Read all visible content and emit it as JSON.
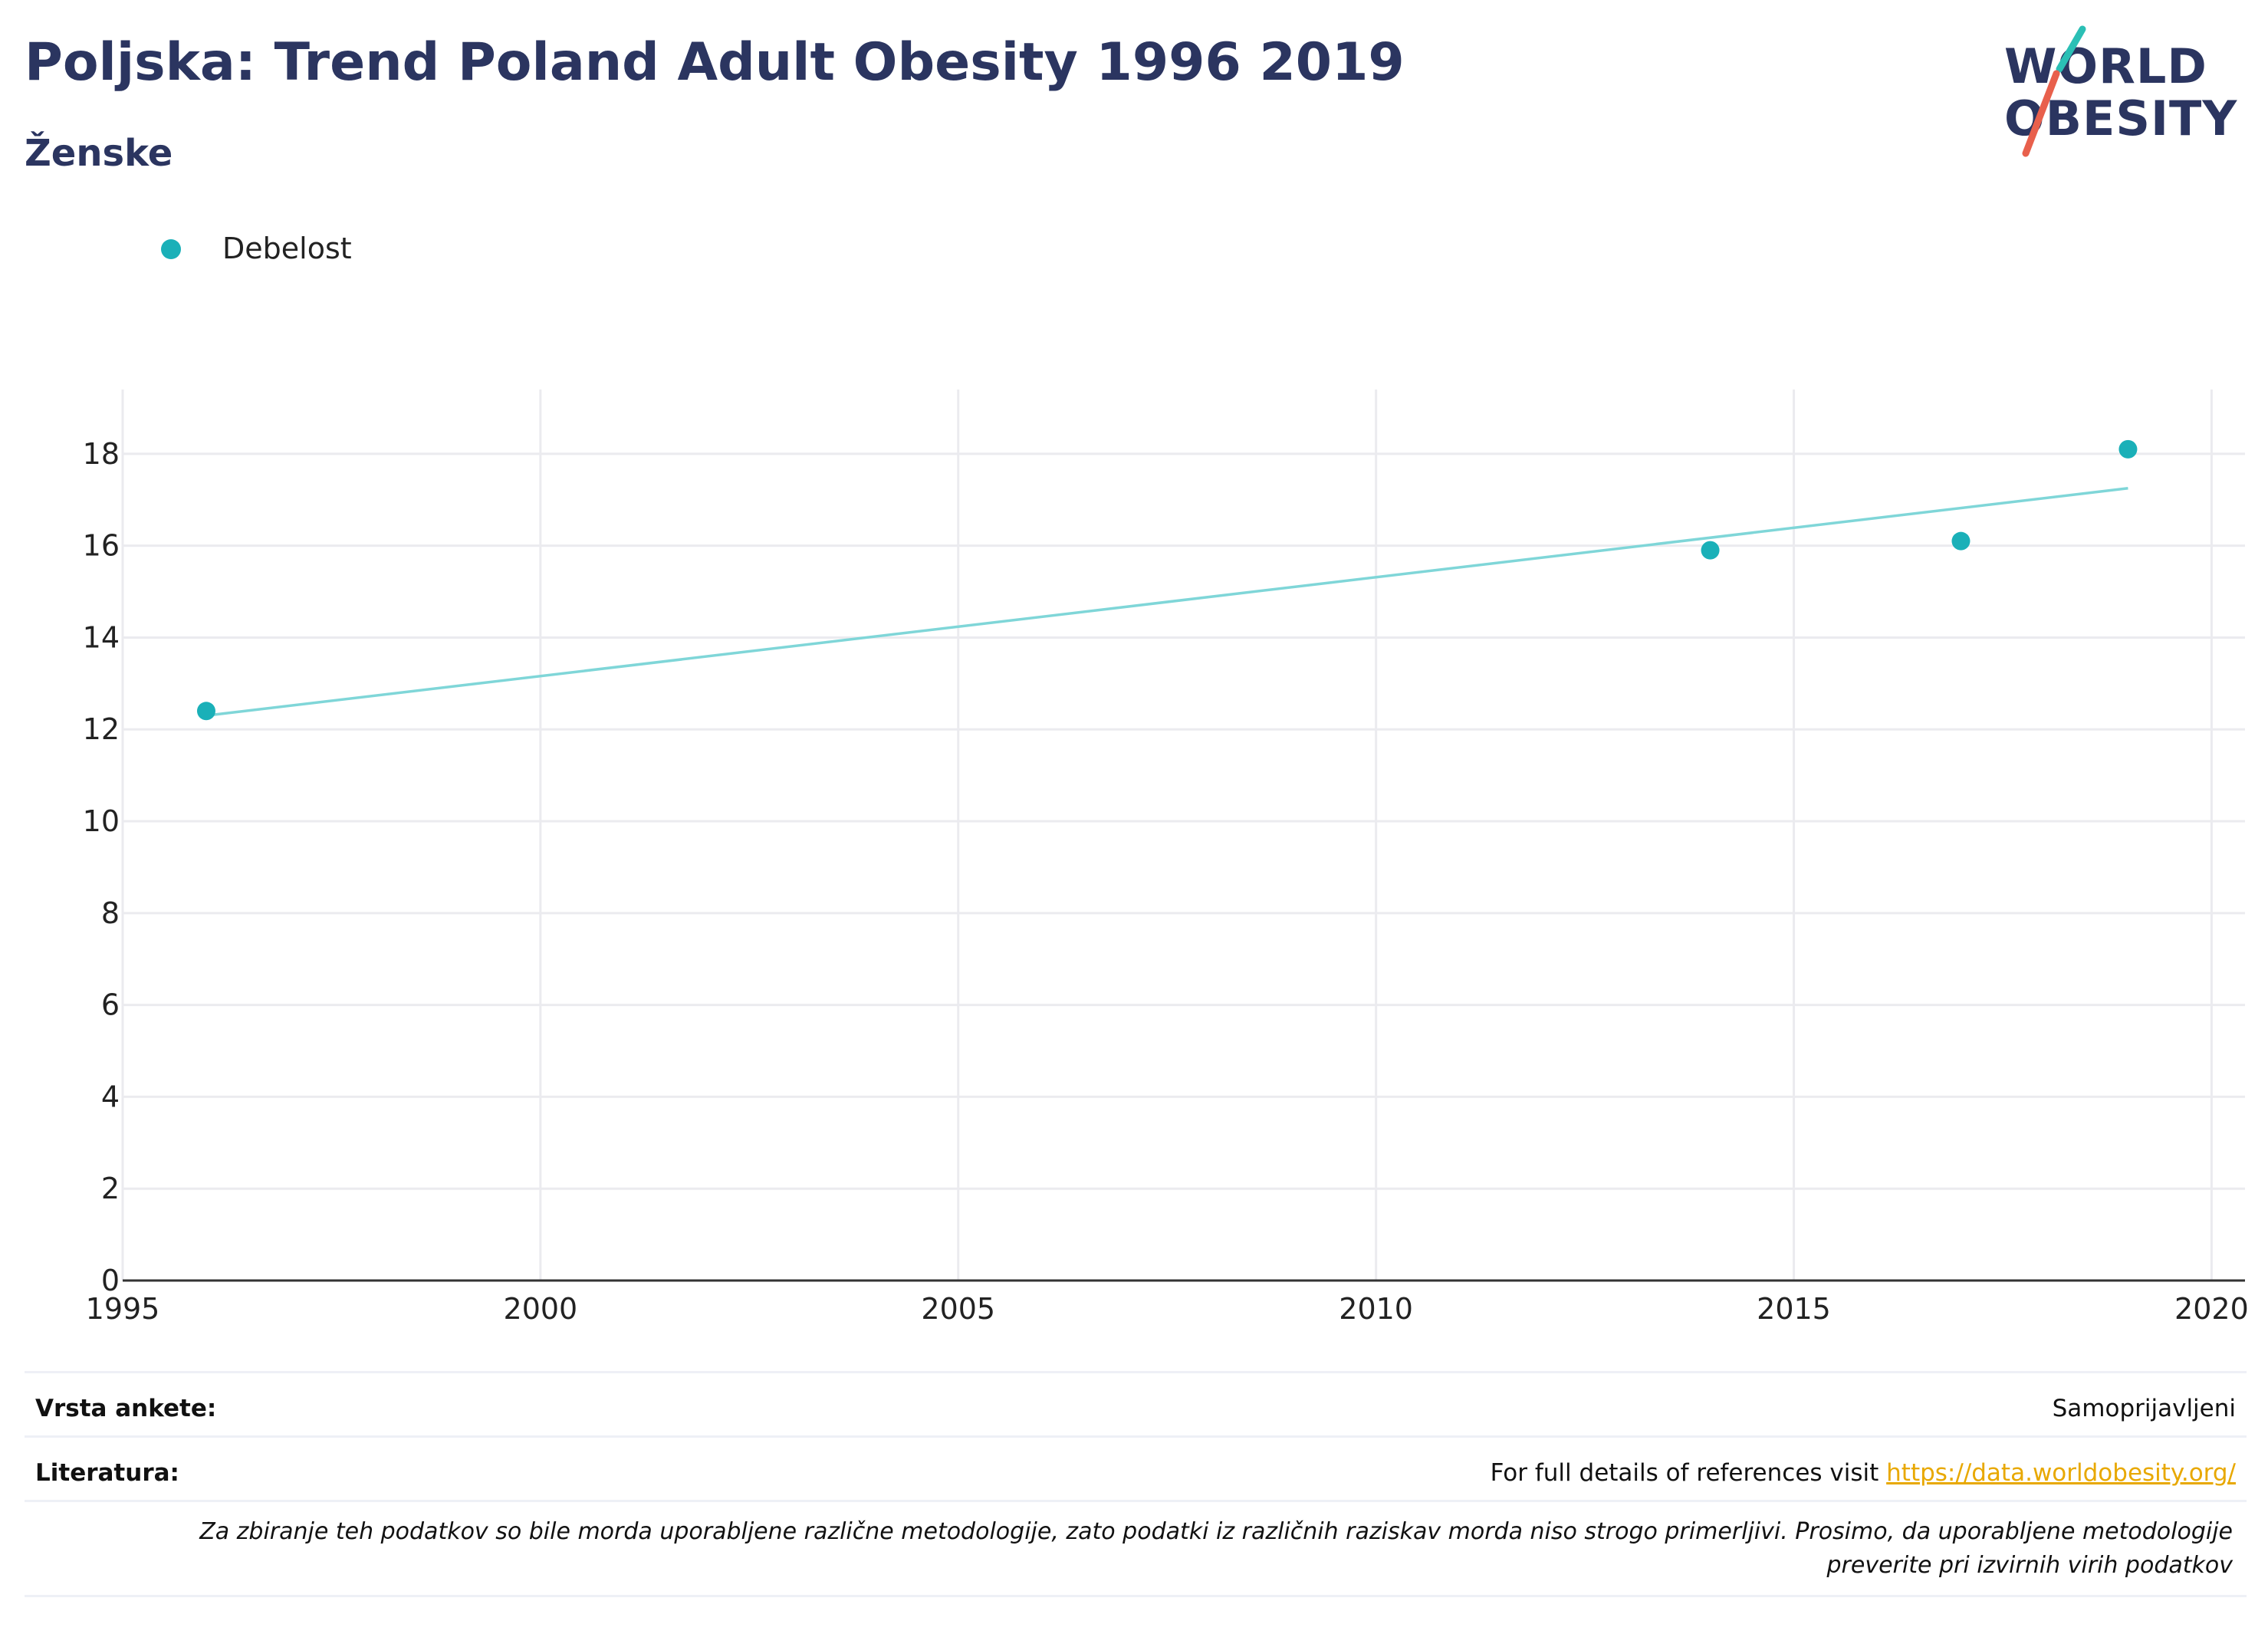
{
  "header": {
    "title": "Poljska: Trend Poland Adult Obesity 1996 2019",
    "subtitle": "Ženske"
  },
  "logo": {
    "line1": "WORLD",
    "line2": "OBESITY",
    "colors": {
      "teal": "#2bbfb5",
      "coral": "#e8604c"
    }
  },
  "chart_data": {
    "type": "scatter",
    "series": [
      {
        "name": "Debelost",
        "x": [
          1996,
          2014,
          2017,
          2019
        ],
        "y": [
          12.4,
          15.9,
          16.1,
          18.1
        ],
        "color": "#1ab0b8"
      }
    ],
    "trendline": {
      "x": [
        1996,
        2019
      ],
      "y": [
        12.3,
        17.25
      ],
      "color": "#7fd6d8"
    },
    "xlim": [
      1995,
      2020.4
    ],
    "ylim": [
      0,
      19.4
    ],
    "x_ticks": [
      1995,
      2000,
      2005,
      2010,
      2015,
      2020
    ],
    "y_ticks": [
      0,
      2,
      4,
      6,
      8,
      10,
      12,
      14,
      16,
      18
    ],
    "grid": true,
    "legend": "top-left"
  },
  "footer": {
    "survey_label": "Vrsta ankete:",
    "survey_value": "Samoprijavljeni",
    "refs_label": "Literatura:",
    "refs_text": "For full details of references visit ",
    "refs_link": "https://data.worldobesity.org/",
    "disclaimer": "Za zbiranje teh podatkov so bile morda uporabljene različne metodologije, zato podatki iz različnih raziskav morda niso strogo primerljivi. Prosimo, da uporabljene metodologije preverite pri izvirnih virih podatkov"
  }
}
